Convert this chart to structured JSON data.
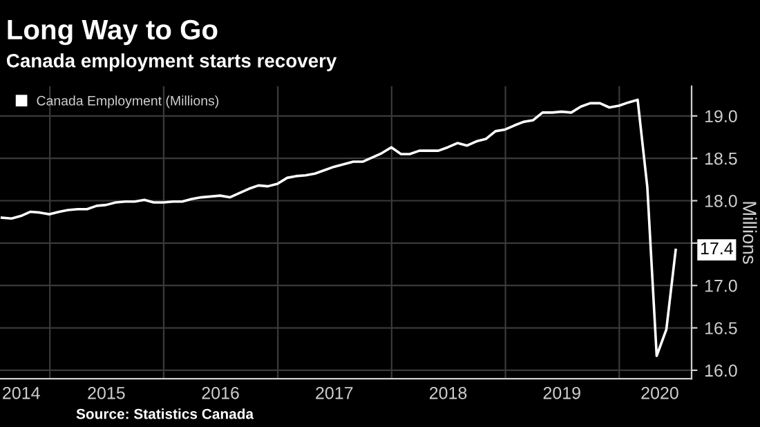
{
  "chart_data": {
    "type": "line",
    "title": "Long Way to Go",
    "subtitle": "Canada employment starts recovery",
    "ylabel": "Millions",
    "x": [
      "2014-07-31",
      "2014-08-31",
      "2014-09-30",
      "2014-10-31",
      "2014-11-30",
      "2014-12-31",
      "2015-01-31",
      "2015-02-28",
      "2015-03-31",
      "2015-04-30",
      "2015-05-31",
      "2015-06-30",
      "2015-07-31",
      "2015-08-31",
      "2015-09-30",
      "2015-10-31",
      "2015-11-30",
      "2015-12-31",
      "2016-01-31",
      "2016-02-29",
      "2016-03-31",
      "2016-04-30",
      "2016-05-31",
      "2016-06-30",
      "2016-07-31",
      "2016-08-31",
      "2016-09-30",
      "2016-10-31",
      "2016-11-30",
      "2016-12-31",
      "2017-01-31",
      "2017-02-28",
      "2017-03-31",
      "2017-04-30",
      "2017-05-31",
      "2017-06-30",
      "2017-07-31",
      "2017-08-31",
      "2017-09-30",
      "2017-10-31",
      "2017-11-30",
      "2017-12-31",
      "2018-01-31",
      "2018-02-28",
      "2018-03-31",
      "2018-04-30",
      "2018-05-31",
      "2018-06-30",
      "2018-07-31",
      "2018-08-31",
      "2018-09-30",
      "2018-10-31",
      "2018-11-30",
      "2018-12-31",
      "2019-01-31",
      "2019-02-28",
      "2019-03-31",
      "2019-04-30",
      "2019-05-31",
      "2019-06-30",
      "2019-07-31",
      "2019-08-31",
      "2019-09-30",
      "2019-10-31",
      "2019-11-30",
      "2019-12-31",
      "2020-01-31",
      "2020-02-29",
      "2020-03-31",
      "2020-04-30",
      "2020-05-31",
      "2020-06-30"
    ],
    "series": [
      {
        "name": "Canada Employment (Millions)",
        "color": "#ffffff",
        "values": [
          17.8,
          17.79,
          17.82,
          17.87,
          17.86,
          17.84,
          17.87,
          17.89,
          17.9,
          17.9,
          17.94,
          17.95,
          17.98,
          17.99,
          17.99,
          18.01,
          17.98,
          17.98,
          17.99,
          17.99,
          18.02,
          18.04,
          18.05,
          18.06,
          18.04,
          18.09,
          18.14,
          18.18,
          18.17,
          18.2,
          18.27,
          18.29,
          18.3,
          18.32,
          18.36,
          18.4,
          18.43,
          18.46,
          18.46,
          18.51,
          18.56,
          18.63,
          18.55,
          18.55,
          18.59,
          18.59,
          18.59,
          18.63,
          18.68,
          18.65,
          18.7,
          18.73,
          18.82,
          18.84,
          18.89,
          18.93,
          18.95,
          19.04,
          19.04,
          19.05,
          19.04,
          19.11,
          19.15,
          19.15,
          19.1,
          19.12,
          19.16,
          19.19,
          18.16,
          16.17,
          16.48,
          17.42
        ]
      }
    ],
    "xlim": [
      "2014-07-25",
      "2020-08-20"
    ],
    "xticks": [
      {
        "value": "2015-01-01",
        "label": null
      },
      {
        "value": "2016-01-01",
        "label": null
      },
      {
        "value": "2017-01-01",
        "label": null
      },
      {
        "value": "2018-01-01",
        "label": null
      },
      {
        "value": "2019-01-01",
        "label": null
      },
      {
        "value": "2020-01-01",
        "label": null
      },
      {
        "value": "2014-10-01",
        "label": "2014"
      },
      {
        "value": "2015-07-01",
        "label": "2015"
      },
      {
        "value": "2016-07-01",
        "label": "2016"
      },
      {
        "value": "2017-07-01",
        "label": "2017"
      },
      {
        "value": "2018-07-01",
        "label": "2018"
      },
      {
        "value": "2019-07-01",
        "label": "2019"
      },
      {
        "value": "2020-05-10",
        "label": "2020"
      }
    ],
    "ylim": [
      15.9,
      19.35
    ],
    "yticks": [
      {
        "value": 16.0,
        "label": "16.0"
      },
      {
        "value": 16.5,
        "label": "16.5"
      },
      {
        "value": 17.0,
        "label": "17.0"
      },
      {
        "value": 17.5,
        "label": null
      },
      {
        "value": 18.0,
        "label": "18.0"
      },
      {
        "value": 18.5,
        "label": "18.5"
      },
      {
        "value": 19.0,
        "label": "19.0"
      }
    ],
    "grid": true,
    "legend": "top left",
    "marker": "none",
    "line_style": "solid",
    "annotations": [
      {
        "text": "17.4",
        "x": "2020-06-30",
        "y": 17.42
      },
      "Source: Statistics Canada"
    ]
  }
}
